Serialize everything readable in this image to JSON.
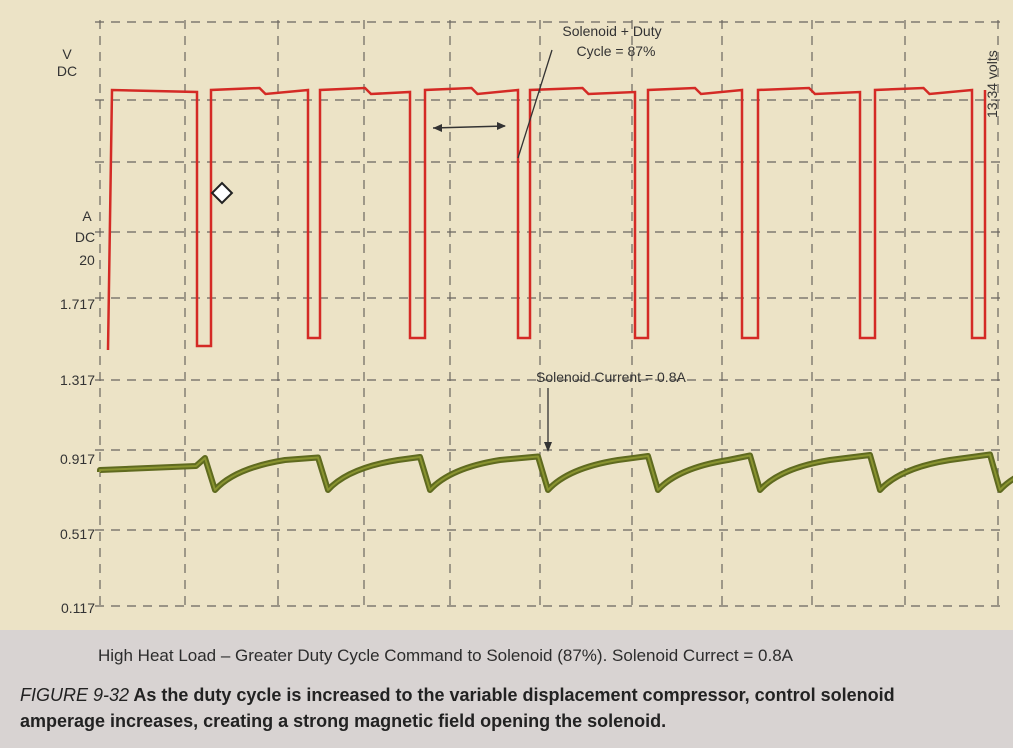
{
  "chart_data": {
    "type": "line",
    "title": "",
    "y_axis_units_top": [
      "V",
      "DC"
    ],
    "y_axis_units_mid": [
      "A",
      "DC",
      "20"
    ],
    "ytick_labels": [
      "1.717",
      "1.317",
      "0.917",
      "0.517",
      "0.117"
    ],
    "right_scale_label": "13.34 volts",
    "annotations": {
      "duty_cycle": [
        "Solenoid + Duty",
        "Cycle = 87%"
      ],
      "current": "Solenoid Current = 0.8A"
    },
    "series": [
      {
        "name": "Solenoid Duty Cycle",
        "units": "V DC",
        "duty_cycle_percent": 87,
        "color": "#d42a25"
      },
      {
        "name": "Solenoid Current",
        "units": "A DC",
        "current_amps": 0.8,
        "color": "#5f6a1f"
      }
    ],
    "grid": true
  },
  "caption": "High Heat Load – Greater Duty Cycle Command to Solenoid (87%). Solenoid Currect = 0.8A",
  "figure": {
    "label": "FIGURE 9-32",
    "text": " As the duty cycle is increased to the variable displacement compressor, control solenoid amperage increases, creating a strong magnetic field opening the solenoid."
  }
}
